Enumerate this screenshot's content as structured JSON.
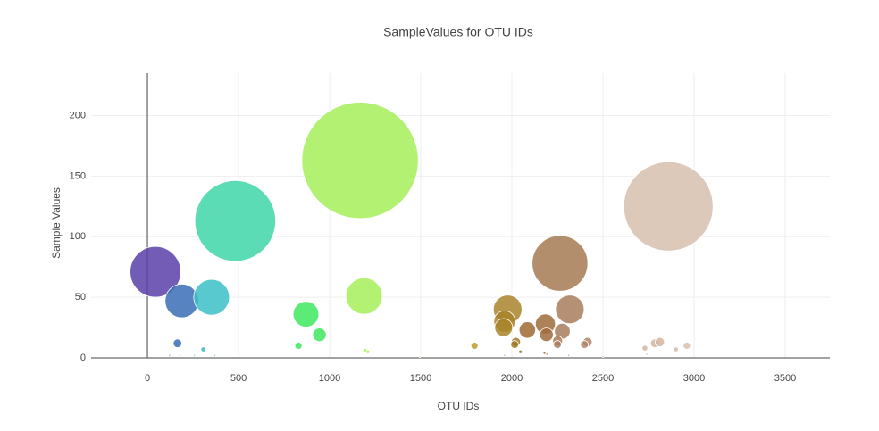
{
  "chart_data": {
    "type": "bubble",
    "title": "SampleValues for OTU IDs",
    "x_label": "OTU IDs",
    "y_label": "Sample Values",
    "x": [
      44,
      189,
      352,
      482,
      870,
      944,
      829,
      165,
      307,
      1167,
      1189,
      1195,
      1210,
      1795,
      1977,
      1960,
      1955,
      2022,
      2015,
      2047,
      2085,
      2184,
      2190,
      2264,
      2318,
      2277,
      2251,
      2250,
      2415,
      2398,
      2859,
      2730,
      2784,
      2812,
      2900,
      2960,
      122,
      180,
      258,
      370,
      1496,
      1960,
      2179,
      2192,
      2312,
      2500,
      2740
    ],
    "values": [
      71,
      47,
      50,
      113,
      36,
      19,
      10,
      12,
      7,
      163,
      51,
      6,
      5,
      10,
      40,
      30,
      25,
      13,
      11,
      5,
      23,
      28,
      19,
      78,
      40,
      22,
      14,
      11,
      13,
      11,
      125,
      8,
      12,
      13,
      7,
      10,
      2,
      2,
      2,
      2,
      1,
      2,
      4,
      3,
      2,
      1,
      3
    ],
    "colors": [
      "#5b3fa8",
      "#3a6fb5",
      "#3cc0c8",
      "#3fd6a8",
      "#3ee85e",
      "#3ee85e",
      "#3ee85e",
      "#3a6fb5",
      "#3cb6c8",
      "#a6ee5a",
      "#a6ee5a",
      "#a6ee5a",
      "#a6ee5a",
      "#b8a030",
      "#a8842a",
      "#a8842a",
      "#a8842a",
      "#a07a28",
      "#a07a28",
      "#9f6a34",
      "#9f6a34",
      "#a06c3c",
      "#a06c3c",
      "#a67a54",
      "#a87c5c",
      "#a87c5c",
      "#a87c5c",
      "#a87c5c",
      "#b08468",
      "#b08468",
      "#d6bfae",
      "#d2b6a2",
      "#d2b6a2",
      "#d2b6a2",
      "#d6bfae",
      "#d6bfae",
      "#3a6fb5",
      "#3a6fb5",
      "#3cc0c8",
      "#3cc0c8",
      "#c8e05a",
      "#a8842a",
      "#a06c3c",
      "#a06c3c",
      "#a87c5c",
      "#b08468",
      "#d2b6a2"
    ],
    "xlim": [
      -309,
      3745
    ],
    "ylim": [
      0,
      235
    ],
    "xticks": [
      0,
      500,
      1000,
      1500,
      2000,
      2500,
      3000,
      3500
    ],
    "yticks": [
      0,
      50,
      100,
      150,
      200
    ],
    "grid": true
  }
}
